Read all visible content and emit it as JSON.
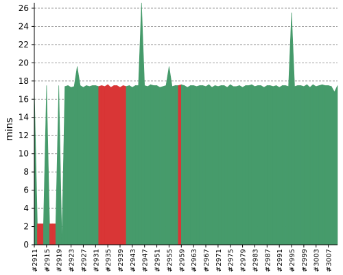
{
  "chart_data": {
    "type": "area",
    "title": "",
    "xlabel": "",
    "ylabel": "mins",
    "ylim": [
      0,
      26.6
    ],
    "yticks": [
      0,
      2,
      4,
      6,
      8,
      10,
      12,
      14,
      16,
      18,
      20,
      22,
      24,
      26
    ],
    "grid": true,
    "colors": {
      "success": "#469b6b",
      "failure": "#d93636",
      "grid": "#808080"
    },
    "builds": [
      2911,
      2912,
      2913,
      2914,
      2915,
      2916,
      2917,
      2918,
      2919,
      2920,
      2921,
      2922,
      2923,
      2924,
      2925,
      2926,
      2927,
      2928,
      2929,
      2930,
      2931,
      2932,
      2933,
      2934,
      2935,
      2936,
      2937,
      2938,
      2939,
      2940,
      2941,
      2942,
      2943,
      2944,
      2945,
      2946,
      2947,
      2948,
      2949,
      2950,
      2951,
      2952,
      2953,
      2954,
      2955,
      2956,
      2957,
      2958,
      2959,
      2960,
      2961,
      2962,
      2963,
      2964,
      2965,
      2966,
      2967,
      2968,
      2969,
      2970,
      2971,
      2972,
      2973,
      2974,
      2975,
      2976,
      2977,
      2978,
      2979,
      2980,
      2981,
      2982,
      2983,
      2984,
      2985,
      2986,
      2987,
      2988,
      2989,
      2990,
      2991,
      2992,
      2993,
      2994,
      2995,
      2996,
      2997,
      2998,
      2999,
      3000,
      3001,
      3002,
      3003,
      3004,
      3005,
      3006,
      3007,
      3008,
      3009,
      3010
    ],
    "durations": [
      17.2,
      2.3,
      2.3,
      2.3,
      17.5,
      2.3,
      2.3,
      2.3,
      17.5,
      0.5,
      17.4,
      17.5,
      17.3,
      17.4,
      19.6,
      17.5,
      17.3,
      17.5,
      17.4,
      17.5,
      17.5,
      17.4,
      17.5,
      17.4,
      17.6,
      17.3,
      17.5,
      17.5,
      17.3,
      17.5,
      17.4,
      17.5,
      17.3,
      17.5,
      17.5,
      26.6,
      17.5,
      17.4,
      17.6,
      17.5,
      17.5,
      17.3,
      17.4,
      17.5,
      19.6,
      17.4,
      17.5,
      17.5,
      17.6,
      17.5,
      17.3,
      17.5,
      17.5,
      17.4,
      17.5,
      17.5,
      17.4,
      17.6,
      17.3,
      17.5,
      17.4,
      17.5,
      17.5,
      17.3,
      17.6,
      17.4,
      17.4,
      17.5,
      17.3,
      17.5,
      17.5,
      17.6,
      17.4,
      17.5,
      17.5,
      17.3,
      17.5,
      17.5,
      17.4,
      17.5,
      17.3,
      17.5,
      17.5,
      17.4,
      25.5,
      17.4,
      17.5,
      17.5,
      17.4,
      17.6,
      17.3,
      17.6,
      17.4,
      17.5,
      17.6,
      17.5,
      17.5,
      17.4,
      16.8,
      17.5
    ],
    "status": [
      "S",
      "F",
      "F",
      "F",
      "S",
      "F",
      "F",
      "F",
      "S",
      "S",
      "S",
      "S",
      "S",
      "S",
      "S",
      "S",
      "S",
      "S",
      "S",
      "S",
      "S",
      "F",
      "F",
      "F",
      "F",
      "F",
      "F",
      "F",
      "F",
      "F",
      "F",
      "S",
      "S",
      "S",
      "S",
      "S",
      "S",
      "S",
      "S",
      "S",
      "S",
      "S",
      "S",
      "S",
      "S",
      "S",
      "S",
      "F",
      "F",
      "S",
      "S",
      "S",
      "S",
      "S",
      "S",
      "S",
      "S",
      "S",
      "S",
      "S",
      "S",
      "S",
      "S",
      "S",
      "S",
      "S",
      "S",
      "S",
      "S",
      "S",
      "S",
      "S",
      "S",
      "S",
      "S",
      "S",
      "S",
      "S",
      "S",
      "S",
      "S",
      "S",
      "S",
      "S",
      "S",
      "S",
      "S",
      "S",
      "S",
      "S",
      "S",
      "S",
      "S",
      "S",
      "S",
      "S",
      "S",
      "S",
      "S",
      "S"
    ],
    "xtick_labels": [
      "#2911",
      "#2915",
      "#2919",
      "#2923",
      "#2927",
      "#2931",
      "#2935",
      "#2939",
      "#2943",
      "#2947",
      "#2951",
      "#2955",
      "#2959",
      "#2963",
      "#2967",
      "#2971",
      "#2975",
      "#2979",
      "#2983",
      "#2987",
      "#2991",
      "#2995",
      "#2999",
      "#3003",
      "#3007"
    ],
    "xtick_builds": [
      2911,
      2915,
      2919,
      2923,
      2927,
      2931,
      2935,
      2939,
      2943,
      2947,
      2951,
      2955,
      2959,
      2963,
      2967,
      2971,
      2975,
      2979,
      2983,
      2987,
      2991,
      2995,
      2999,
      3003,
      3007
    ]
  }
}
